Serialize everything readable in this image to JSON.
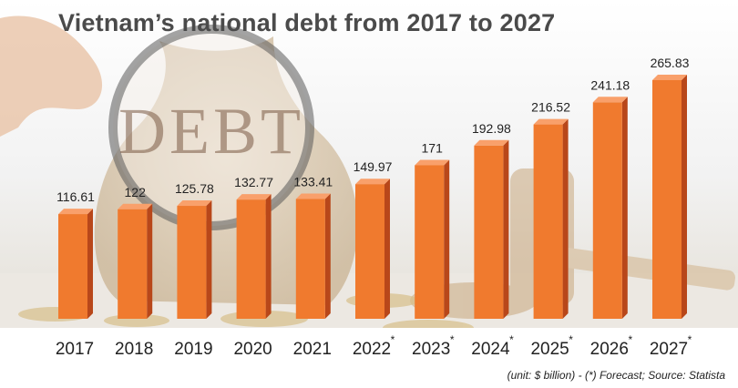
{
  "title": "Vietnam’s national debt from 2017 to 2027",
  "footnote": "(unit: $ billion) - (*) Forecast; Source: Statista",
  "background": {
    "bag_label": "DEBT"
  },
  "colors": {
    "bar_front": "#f07a2e",
    "bar_side": "#b8471a",
    "bar_top": "#f9a06b",
    "label": "#222222",
    "title": "#4a4a4a"
  },
  "chart_data": {
    "type": "bar",
    "title": "Vietnam’s national debt from 2017 to 2027",
    "categories": [
      "2017",
      "2018",
      "2019",
      "2020",
      "2021",
      "2022",
      "2023",
      "2024",
      "2025",
      "2026",
      "2027"
    ],
    "forecast_markers": [
      "",
      "",
      "",
      "",
      "",
      "*",
      "*",
      "*",
      "*",
      "*",
      "*"
    ],
    "values": [
      116.61,
      122,
      125.78,
      132.77,
      133.41,
      149.97,
      171,
      192.98,
      216.52,
      241.18,
      265.83
    ],
    "value_labels": [
      "116.61",
      "122",
      "125.78",
      "132.77",
      "133.41",
      "149.97",
      "171",
      "192.98",
      "216.52",
      "241.18",
      "265.83"
    ],
    "unit": "$ billion",
    "xlabel": "",
    "ylabel": "",
    "ylim": [
      0,
      265.83
    ],
    "grid": false,
    "legend": "none"
  }
}
